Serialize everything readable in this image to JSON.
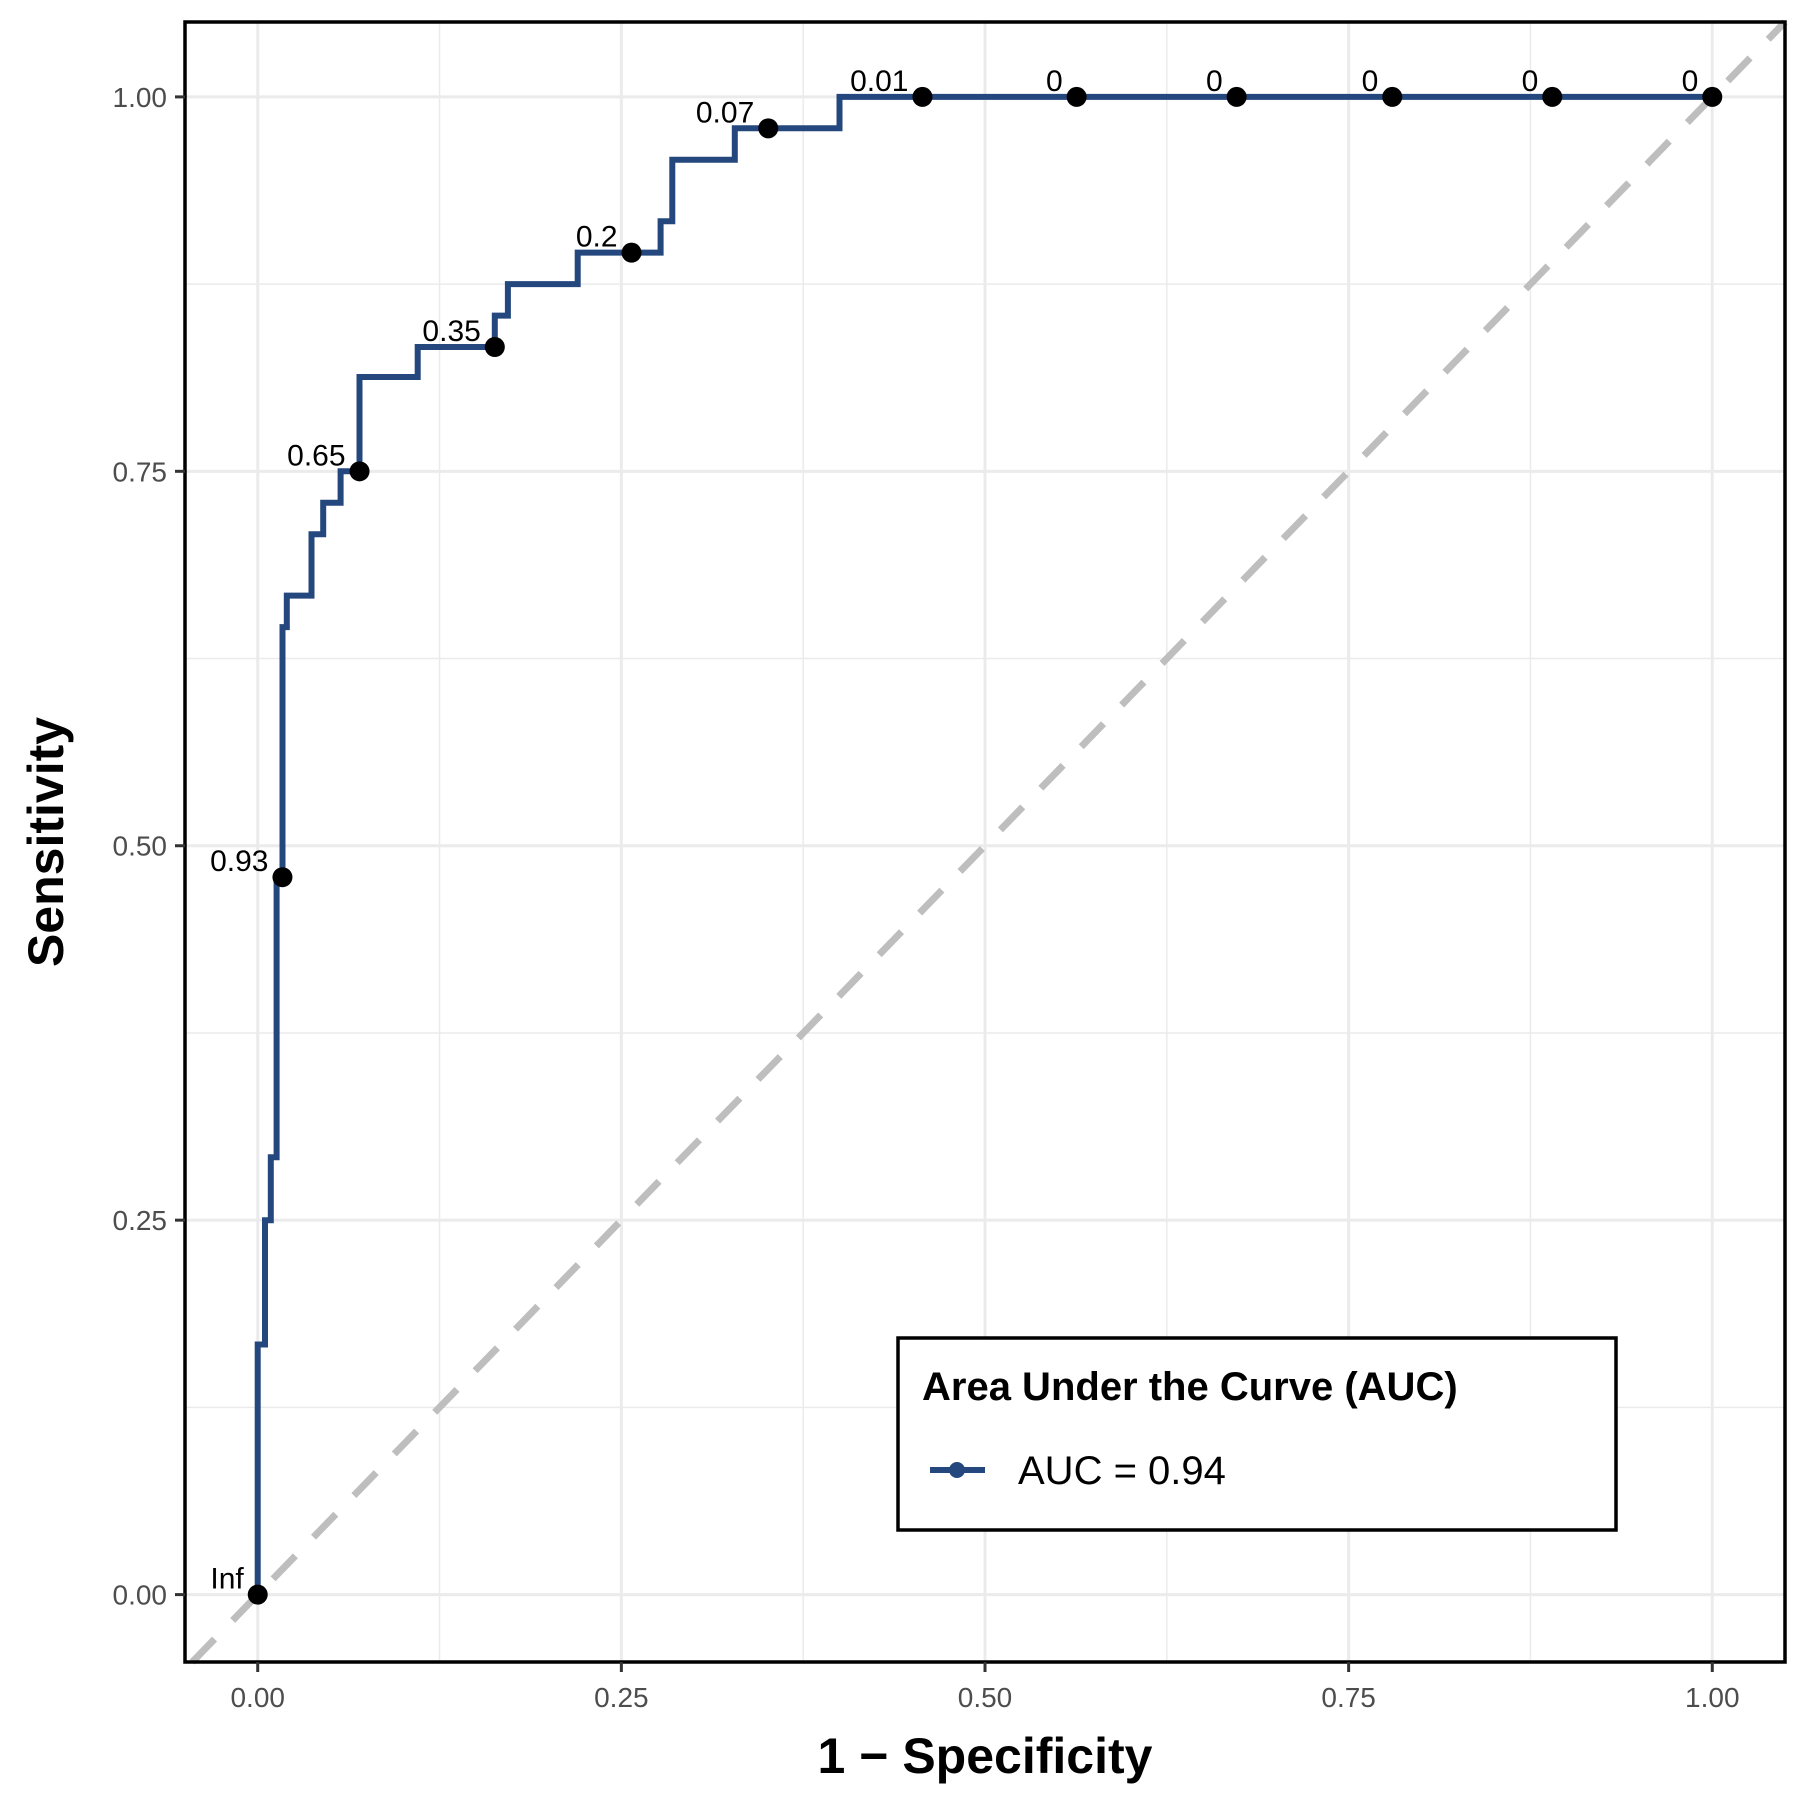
{
  "chart_data": {
    "type": "line",
    "xlabel": "1 − Specificity",
    "ylabel": "Sensitivity",
    "xlim": [
      -0.05,
      1.05
    ],
    "ylim": [
      -0.045,
      1.05
    ],
    "x_ticks": [
      0,
      0.25,
      0.5,
      0.75,
      1
    ],
    "x_tick_labels": [
      "0.00",
      "0.25",
      "0.50",
      "0.75",
      "1.00"
    ],
    "y_ticks": [
      0,
      0.25,
      0.5,
      0.75,
      1
    ],
    "y_tick_labels": [
      "0.00",
      "0.25",
      "0.50",
      "0.75",
      "1.00"
    ],
    "grid": true,
    "reference_line": {
      "from": [
        0,
        0
      ],
      "to": [
        1,
        1
      ],
      "style": "dashed",
      "color": "#bebebe"
    },
    "series": [
      {
        "name": "AUC = 0.94",
        "color": "#24487e",
        "x": [
          0,
          0,
          0.005,
          0.005,
          0.009,
          0.009,
          0.013,
          0.013,
          0.017,
          0.017,
          0.02,
          0.02,
          0.037,
          0.037,
          0.045,
          0.045,
          0.057,
          0.057,
          0.07,
          0.07,
          0.11,
          0.11,
          0.163,
          0.163,
          0.172,
          0.172,
          0.22,
          0.22,
          0.277,
          0.277,
          0.285,
          0.285,
          0.328,
          0.328,
          0.4,
          0.4,
          1.0
        ],
        "y": [
          0,
          0.167,
          0.167,
          0.25,
          0.25,
          0.292,
          0.292,
          0.479,
          0.479,
          0.646,
          0.646,
          0.667,
          0.667,
          0.708,
          0.708,
          0.729,
          0.729,
          0.75,
          0.75,
          0.813,
          0.813,
          0.833,
          0.833,
          0.854,
          0.854,
          0.875,
          0.875,
          0.896,
          0.896,
          0.917,
          0.917,
          0.958,
          0.958,
          0.979,
          0.979,
          1.0,
          1.0
        ]
      }
    ],
    "threshold_points": [
      {
        "x": 0.0,
        "y": 0.0,
        "label": "Inf"
      },
      {
        "x": 0.017,
        "y": 0.479,
        "label": "0.93"
      },
      {
        "x": 0.07,
        "y": 0.75,
        "label": "0.65"
      },
      {
        "x": 0.163,
        "y": 0.833,
        "label": "0.35"
      },
      {
        "x": 0.257,
        "y": 0.896,
        "label": "0.2"
      },
      {
        "x": 0.351,
        "y": 0.979,
        "label": "0.07"
      },
      {
        "x": 0.457,
        "y": 1.0,
        "label": "0.01"
      },
      {
        "x": 0.563,
        "y": 1.0,
        "label": "0"
      },
      {
        "x": 0.673,
        "y": 1.0,
        "label": "0"
      },
      {
        "x": 0.78,
        "y": 1.0,
        "label": "0"
      },
      {
        "x": 0.89,
        "y": 1.0,
        "label": "0"
      },
      {
        "x": 1.0,
        "y": 1.0,
        "label": "0"
      }
    ],
    "legend": {
      "title": "Area Under the Curve (AUC)",
      "entries": [
        "AUC = 0.94"
      ],
      "placement": "bottom-right"
    }
  }
}
